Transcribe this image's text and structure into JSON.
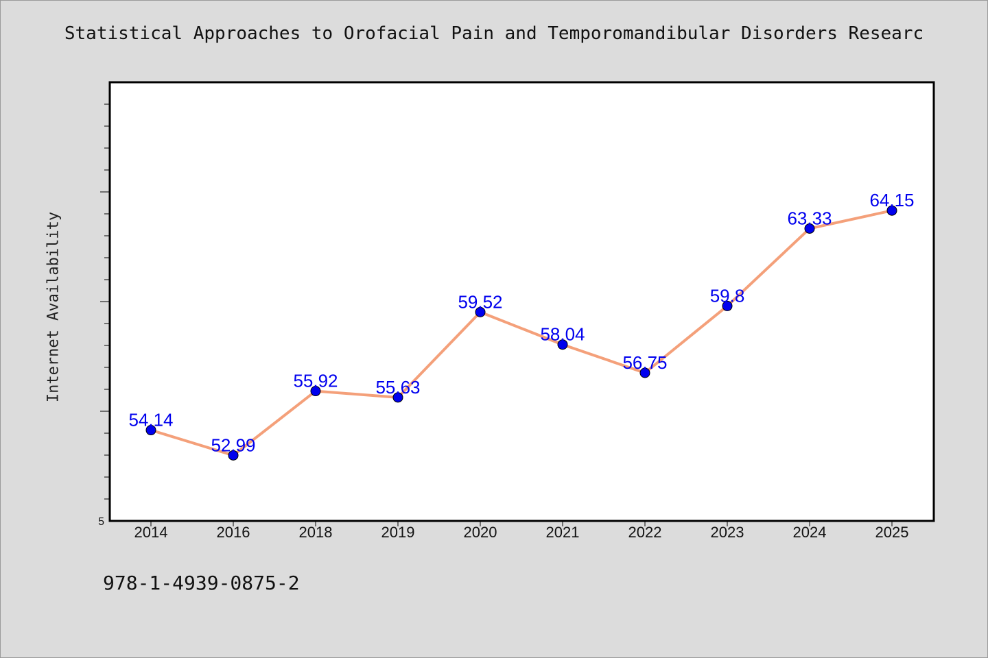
{
  "title": "Statistical Approaches to Orofacial Pain and Temporomandibular Disorders Researc",
  "footer_text": "978-1-4939-0875-2",
  "chart_data": {
    "type": "line",
    "title": "Statistical Approaches to Orofacial Pain and Temporomandibular Disorders Researc",
    "xlabel": "",
    "ylabel": "Internet Availability",
    "categories": [
      "2014",
      "2016",
      "2018",
      "2019",
      "2020",
      "2021",
      "2022",
      "2023",
      "2024",
      "2025"
    ],
    "series": [
      {
        "values": [
          54.14,
          52.99,
          55.92,
          55.63,
          59.52,
          58.04,
          56.75,
          59.8,
          63.33,
          64.15
        ],
        "labels": [
          "54.14",
          "52.99",
          "55.92",
          "55.63",
          "59.52",
          "58.04",
          "56.75",
          "59.8",
          "63.33",
          "64.15"
        ]
      }
    ],
    "ylim": [
      50,
      70
    ],
    "y_tick_labels": [
      "5"
    ],
    "grid": false,
    "legend": "none",
    "colors": {
      "line": "#f4a07a",
      "marker": "#0000ee",
      "data_label": "#0000ee",
      "plot_background": "#ffffff",
      "page_background": "#dcdcdc"
    }
  }
}
